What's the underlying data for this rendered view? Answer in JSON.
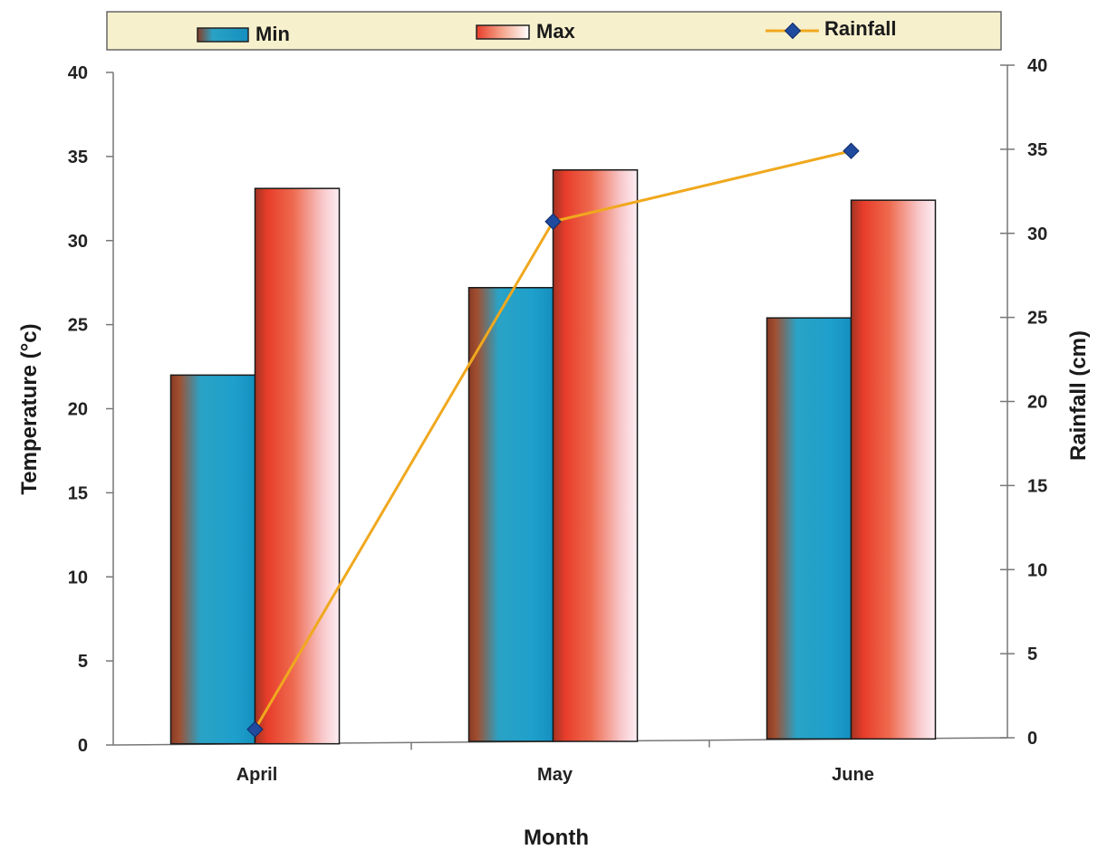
{
  "chart_data": {
    "type": "bar",
    "categories": [
      "April",
      "May",
      "June"
    ],
    "series": [
      {
        "name": "Min",
        "type": "bar",
        "axis": "left",
        "values": [
          22.0,
          27.2,
          25.4
        ]
      },
      {
        "name": "Max",
        "type": "bar",
        "axis": "left",
        "values": [
          33.1,
          34.2,
          32.4
        ]
      },
      {
        "name": "Rainfall",
        "type": "line",
        "axis": "right",
        "values": [
          0.5,
          30.7,
          34.9
        ]
      }
    ],
    "xlabel": "Month",
    "ylabel": "Temperature (°c)",
    "y2label": "Rainfall (cm)",
    "ylim": [
      0,
      40
    ],
    "y2lim": [
      0,
      40
    ],
    "yticks": [
      "0",
      "5",
      "10",
      "15",
      "20",
      "25",
      "30",
      "35",
      "40"
    ],
    "y2ticks": [
      "0",
      "5",
      "10",
      "15",
      "20",
      "25",
      "30",
      "35",
      "40"
    ],
    "legend": {
      "position": "top",
      "entries": [
        "Min",
        "Max",
        "Rainfall"
      ]
    },
    "grid": false,
    "colors": {
      "min": "#1f9ec8",
      "max": "#e8402a",
      "rainfall_line": "#f0a81e",
      "rainfall_marker": "#1f4a9e",
      "legend_bg": "#f7f0cd"
    }
  }
}
